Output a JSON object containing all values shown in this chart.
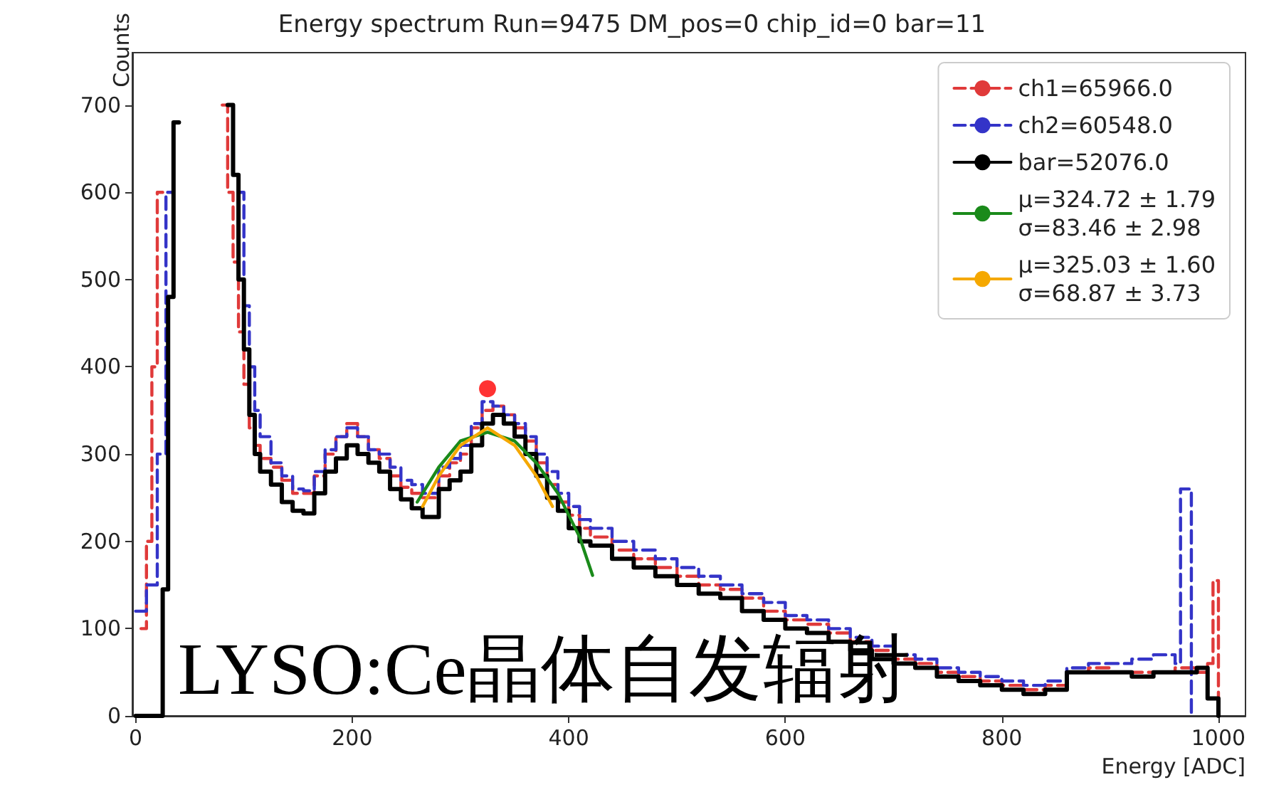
{
  "chart_data": {
    "type": "step",
    "title": "Energy spectrum Run=9475 DM_pos=0 chip_id=0 bar=11",
    "xlabel": "Energy [ADC]",
    "ylabel": "Counts",
    "xlim": [
      -3,
      1025
    ],
    "xticks": [
      0,
      200,
      400,
      600,
      800,
      1000
    ],
    "ylim": [
      0,
      760
    ],
    "yticks": [
      0,
      100,
      200,
      300,
      400,
      500,
      600,
      700
    ],
    "grid": false,
    "legend": "top right",
    "annotations": [
      "LYSO:Ce晶体自发辐射"
    ],
    "series": [
      {
        "name": "ch1=65966.0",
        "color": "#e03a3a",
        "line_style": "dashed",
        "x": [
          5,
          10,
          15,
          20,
          25,
          80,
          85,
          90,
          95,
          100,
          105,
          110,
          115,
          125,
          135,
          145,
          155,
          165,
          175,
          185,
          195,
          205,
          215,
          225,
          235,
          245,
          255,
          265,
          280,
          290,
          300,
          310,
          320,
          330,
          340,
          350,
          360,
          370,
          380,
          390,
          400,
          410,
          420,
          440,
          460,
          480,
          500,
          520,
          540,
          560,
          580,
          600,
          620,
          640,
          660,
          680,
          700,
          720,
          740,
          760,
          780,
          800,
          820,
          840,
          860,
          880,
          900,
          920,
          940,
          960,
          980,
          990,
          995,
          1000
        ],
        "values": [
          100,
          200,
          400,
          600,
          null,
          700,
          600,
          520,
          440,
          380,
          330,
          310,
          295,
          285,
          270,
          255,
          255,
          275,
          300,
          320,
          335,
          320,
          305,
          295,
          275,
          262,
          255,
          250,
          275,
          290,
          300,
          330,
          350,
          355,
          345,
          330,
          315,
          290,
          265,
          245,
          230,
          215,
          205,
          190,
          180,
          170,
          160,
          150,
          145,
          135,
          120,
          110,
          105,
          95,
          85,
          75,
          65,
          60,
          50,
          45,
          40,
          35,
          30,
          35,
          50,
          55,
          50,
          50,
          50,
          55,
          50,
          60,
          155,
          0
        ]
      },
      {
        "name": "ch2=60548.0",
        "color": "#3434c8",
        "line_style": "dashed",
        "x": [
          0,
          10,
          20,
          28,
          35,
          90,
          95,
          100,
          105,
          110,
          115,
          125,
          135,
          145,
          155,
          165,
          175,
          185,
          195,
          205,
          215,
          225,
          235,
          245,
          255,
          265,
          280,
          290,
          300,
          310,
          320,
          330,
          340,
          350,
          360,
          370,
          380,
          390,
          400,
          410,
          420,
          440,
          460,
          480,
          500,
          520,
          540,
          560,
          580,
          600,
          620,
          640,
          660,
          680,
          700,
          720,
          740,
          760,
          780,
          800,
          820,
          840,
          860,
          880,
          900,
          920,
          940,
          960,
          965,
          975
        ],
        "values": [
          120,
          150,
          300,
          600,
          null,
          null,
          600,
          470,
          400,
          350,
          320,
          290,
          275,
          260,
          258,
          280,
          305,
          320,
          330,
          320,
          305,
          300,
          285,
          270,
          265,
          255,
          285,
          295,
          310,
          335,
          360,
          355,
          345,
          335,
          320,
          300,
          280,
          255,
          240,
          225,
          215,
          200,
          190,
          180,
          170,
          160,
          150,
          140,
          130,
          115,
          110,
          100,
          90,
          80,
          70,
          65,
          55,
          50,
          45,
          40,
          35,
          40,
          55,
          60,
          60,
          65,
          70,
          60,
          260,
          0
        ]
      },
      {
        "name": "bar=52076.0",
        "color": "#000000",
        "line_style": "solid",
        "x": [
          0,
          25,
          30,
          35,
          40,
          45,
          85,
          90,
          95,
          100,
          105,
          110,
          115,
          125,
          135,
          145,
          155,
          165,
          175,
          185,
          195,
          205,
          215,
          225,
          235,
          245,
          255,
          265,
          280,
          290,
          300,
          310,
          320,
          330,
          340,
          350,
          360,
          370,
          380,
          390,
          400,
          410,
          420,
          440,
          460,
          480,
          500,
          520,
          540,
          560,
          580,
          600,
          620,
          640,
          660,
          680,
          700,
          720,
          740,
          760,
          780,
          800,
          820,
          840,
          860,
          880,
          900,
          920,
          940,
          960,
          980,
          990,
          1000
        ],
        "values": [
          0,
          145,
          480,
          680,
          null,
          null,
          700,
          620,
          500,
          420,
          345,
          300,
          280,
          265,
          245,
          235,
          232,
          255,
          280,
          295,
          310,
          300,
          290,
          280,
          260,
          248,
          238,
          228,
          260,
          270,
          280,
          310,
          335,
          345,
          335,
          320,
          300,
          275,
          250,
          235,
          215,
          200,
          195,
          180,
          170,
          160,
          150,
          140,
          135,
          120,
          110,
          100,
          95,
          85,
          75,
          65,
          60,
          55,
          45,
          40,
          35,
          30,
          25,
          30,
          50,
          50,
          50,
          45,
          50,
          50,
          55,
          20,
          0
        ]
      },
      {
        "name": "μ=324.72 ± 1.79\nσ=83.46 ± 2.98",
        "type": "line",
        "color": "#1a8a1a",
        "line_style": "solid",
        "x": [
          260,
          280,
          300,
          325,
          350,
          370,
          390,
          410,
          422
        ],
        "values": [
          245,
          285,
          315,
          325,
          315,
          290,
          255,
          205,
          161
        ]
      },
      {
        "name": "μ=325.03 ± 1.60\nσ=68.87 ± 3.73",
        "type": "line",
        "color": "#f5a800",
        "line_style": "solid",
        "x": [
          265,
          280,
          300,
          325,
          350,
          370,
          385
        ],
        "values": [
          240,
          275,
          310,
          330,
          310,
          275,
          240
        ]
      },
      {
        "type": "scatter",
        "color": "#ff0000",
        "marker": "circle",
        "x": [
          325
        ],
        "values": [
          375
        ]
      }
    ]
  }
}
